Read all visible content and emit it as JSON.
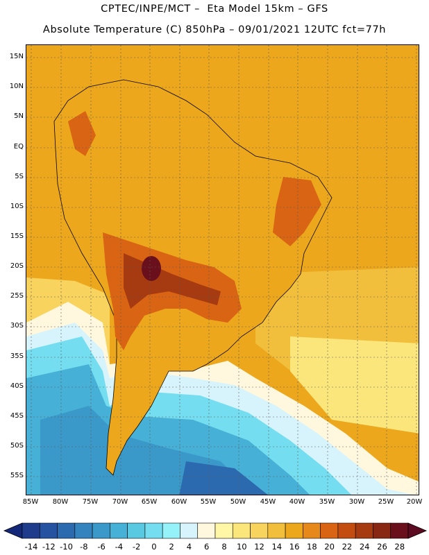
{
  "title": {
    "line1": "CPTEC/INPE/MCT –  Eta Model 15km – GFS",
    "line2": "Absolute Temperature (C) 850hPa – 09/01/2021 12UTC fct=77h"
  },
  "map": {
    "lat_labels": [
      "15N",
      "10N",
      "5N",
      "EQ",
      "5S",
      "10S",
      "15S",
      "20S",
      "25S",
      "30S",
      "35S",
      "40S",
      "45S",
      "50S",
      "55S"
    ],
    "lon_labels": [
      "85W",
      "80W",
      "75W",
      "70W",
      "65W",
      "60W",
      "55W",
      "50W",
      "45W",
      "40W",
      "35W",
      "30W",
      "25W",
      "20W"
    ],
    "gridlines": "dotted",
    "coastline_color": "#000000"
  },
  "colorbar": {
    "labels": [
      "-14",
      "-12",
      "-10",
      "-8",
      "-6",
      "-4",
      "-2",
      "0",
      "2",
      "4",
      "6",
      "8",
      "10",
      "12",
      "14",
      "16",
      "18",
      "20",
      "22",
      "24",
      "26",
      "28"
    ],
    "colors": [
      "#1f3c8c",
      "#2553a2",
      "#2c6ab0",
      "#3482be",
      "#3b99c9",
      "#47b0d6",
      "#59c9e2",
      "#74def0",
      "#95f2f8",
      "#d7f3fb",
      "#fff8de",
      "#fff6a6",
      "#fbe67c",
      "#f8d35e",
      "#f2bf3d",
      "#eca71d",
      "#e6881a",
      "#d86414",
      "#c34d10",
      "#a63a10",
      "#882713",
      "#6a101c"
    ],
    "under_color": "#14287a",
    "over_color": "#5c0b20"
  }
}
